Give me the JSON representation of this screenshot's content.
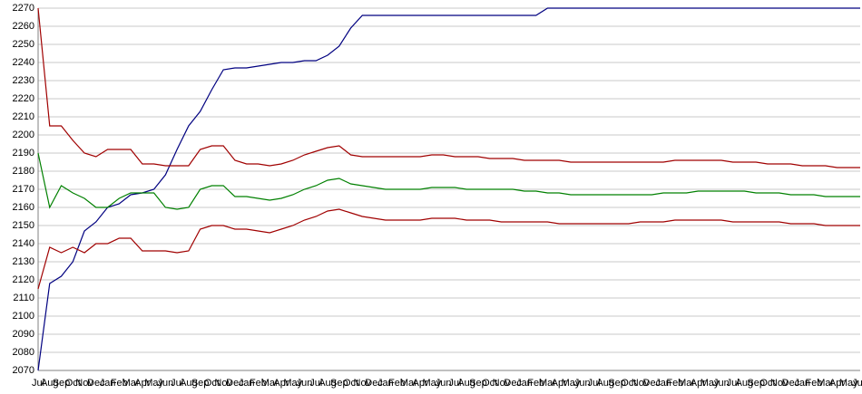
{
  "chart_data": {
    "type": "line",
    "categories": [
      "Jul",
      "Aug",
      "Sep",
      "Oct",
      "Nov",
      "Dec",
      "Jan",
      "Feb",
      "Mar",
      "Apr",
      "May",
      "Jun",
      "Jul",
      "Aug",
      "Sep",
      "Oct",
      "Nov",
      "Dec",
      "Jan",
      "Feb",
      "Mar",
      "Apr",
      "May",
      "Jun",
      "Jul",
      "Aug",
      "Sep",
      "Oct",
      "Nov",
      "Dec",
      "Jan",
      "Feb",
      "Mar",
      "Apr",
      "May",
      "Jun",
      "Jul",
      "Aug",
      "Sep",
      "Oct",
      "Nov",
      "Dec",
      "Jan",
      "Feb",
      "Mar",
      "Apr",
      "May",
      "Jun",
      "Jul",
      "Aug",
      "Sep",
      "Oct",
      "Nov",
      "Dec",
      "Jan",
      "Feb",
      "Mar",
      "Apr",
      "May",
      "Jun",
      "Jul",
      "Aug",
      "Sep",
      "Oct",
      "Nov",
      "Dec",
      "Jan",
      "Feb",
      "Mar",
      "Apr",
      "May",
      "Jun"
    ],
    "series": [
      {
        "color": "#000080",
        "values": [
          2070,
          2118,
          2122,
          2130,
          2147,
          2152,
          2160,
          2162,
          2167,
          2168,
          2170,
          2178,
          2192,
          2205,
          2213,
          2225,
          2236,
          2237,
          2237,
          2238,
          2239,
          2240,
          2240,
          2241,
          2241,
          2244,
          2249,
          2259,
          2266,
          2266,
          2266,
          2266,
          2266,
          2266,
          2266,
          2266,
          2266,
          2266,
          2266,
          2266,
          2266,
          2266,
          2266,
          2266,
          2270,
          2270,
          2270,
          2270,
          2270,
          2270,
          2270,
          2270,
          2270,
          2270,
          2270,
          2270,
          2270,
          2270,
          2270,
          2270,
          2270,
          2270,
          2270,
          2270,
          2270,
          2270,
          2270,
          2270,
          2270,
          2270,
          2270,
          2270
        ]
      },
      {
        "color": "#a00000",
        "values": [
          2270,
          2205,
          2205,
          2197,
          2190,
          2188,
          2192,
          2192,
          2192,
          2184,
          2184,
          2183,
          2183,
          2183,
          2192,
          2194,
          2194,
          2186,
          2184,
          2184,
          2183,
          2184,
          2186,
          2189,
          2191,
          2193,
          2194,
          2189,
          2188,
          2188,
          2188,
          2188,
          2188,
          2188,
          2189,
          2189,
          2188,
          2188,
          2188,
          2187,
          2187,
          2187,
          2186,
          2186,
          2186,
          2186,
          2185,
          2185,
          2185,
          2185,
          2185,
          2185,
          2185,
          2185,
          2185,
          2186,
          2186,
          2186,
          2186,
          2186,
          2185,
          2185,
          2185,
          2184,
          2184,
          2184,
          2183,
          2183,
          2183,
          2182,
          2182,
          2182
        ]
      },
      {
        "color": "#008000",
        "values": [
          2190,
          2160,
          2172,
          2168,
          2165,
          2160,
          2160,
          2165,
          2168,
          2168,
          2168,
          2160,
          2159,
          2160,
          2170,
          2172,
          2172,
          2166,
          2166,
          2165,
          2164,
          2165,
          2167,
          2170,
          2172,
          2175,
          2176,
          2173,
          2172,
          2171,
          2170,
          2170,
          2170,
          2170,
          2171,
          2171,
          2171,
          2170,
          2170,
          2170,
          2170,
          2170,
          2169,
          2169,
          2168,
          2168,
          2167,
          2167,
          2167,
          2167,
          2167,
          2167,
          2167,
          2167,
          2168,
          2168,
          2168,
          2169,
          2169,
          2169,
          2169,
          2169,
          2168,
          2168,
          2168,
          2167,
          2167,
          2167,
          2166,
          2166,
          2166,
          2166
        ]
      },
      {
        "color": "#a00000",
        "values": [
          2115,
          2138,
          2135,
          2138,
          2135,
          2140,
          2140,
          2143,
          2143,
          2136,
          2136,
          2136,
          2135,
          2136,
          2148,
          2150,
          2150,
          2148,
          2148,
          2147,
          2146,
          2148,
          2150,
          2153,
          2155,
          2158,
          2159,
          2157,
          2155,
          2154,
          2153,
          2153,
          2153,
          2153,
          2154,
          2154,
          2154,
          2153,
          2153,
          2153,
          2152,
          2152,
          2152,
          2152,
          2152,
          2151,
          2151,
          2151,
          2151,
          2151,
          2151,
          2151,
          2152,
          2152,
          2152,
          2153,
          2153,
          2153,
          2153,
          2153,
          2152,
          2152,
          2152,
          2152,
          2152,
          2151,
          2151,
          2151,
          2150,
          2150,
          2150,
          2150
        ]
      }
    ],
    "ylim": [
      2070,
      2270
    ],
    "yticks": [
      2070,
      2080,
      2090,
      2100,
      2110,
      2120,
      2130,
      2140,
      2150,
      2160,
      2170,
      2180,
      2190,
      2200,
      2210,
      2220,
      2230,
      2240,
      2250,
      2260,
      2270
    ],
    "grid": true
  }
}
